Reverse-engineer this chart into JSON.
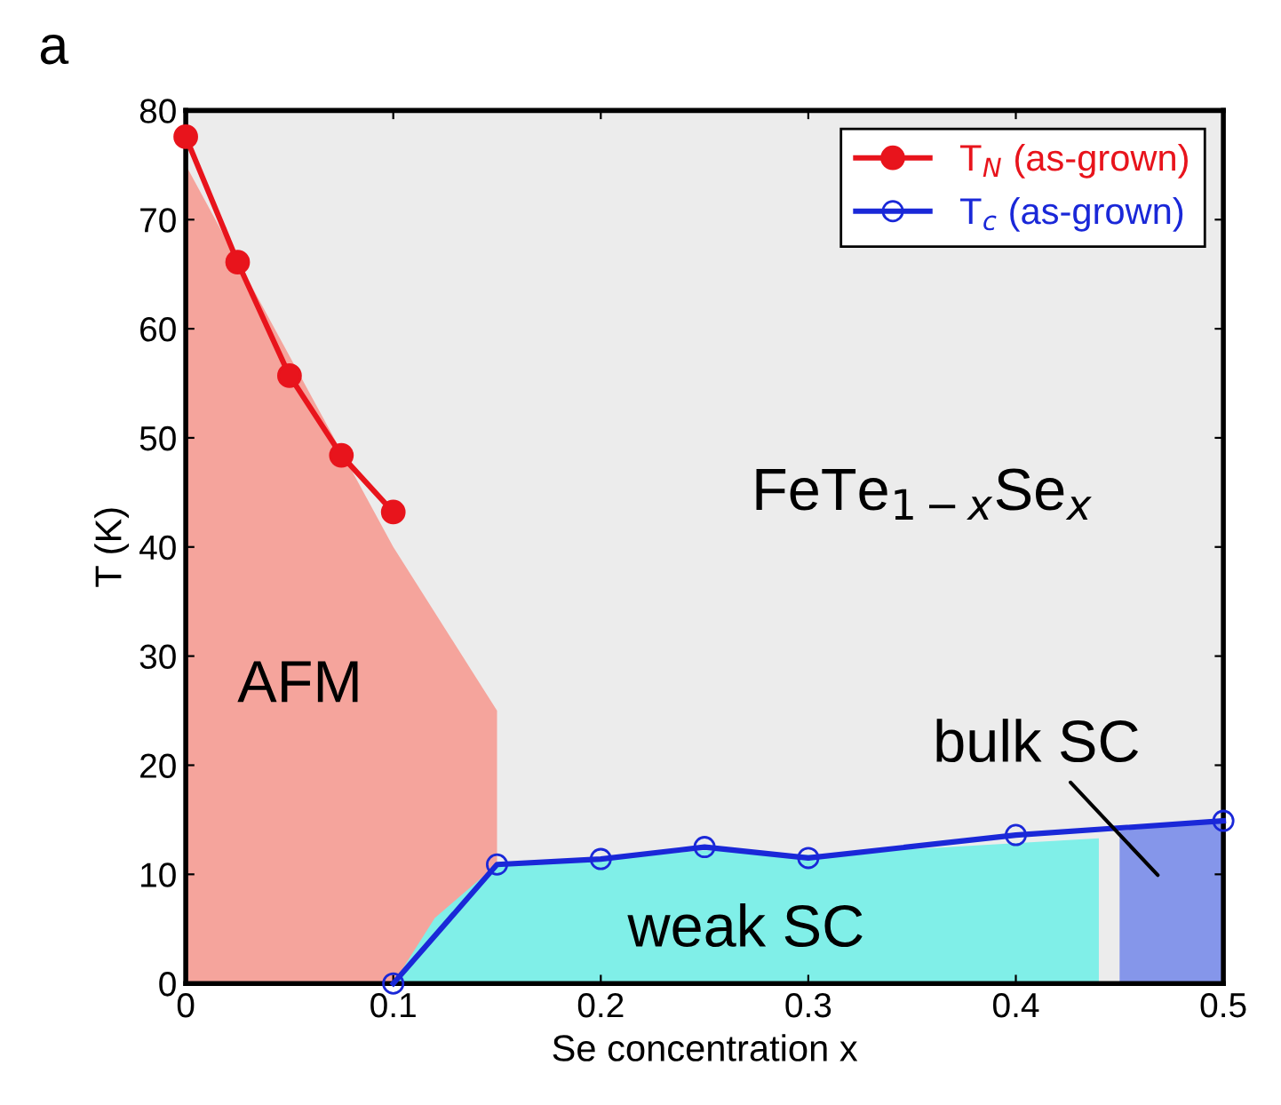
{
  "chart_data": {
    "type": "line",
    "xlabel": "Se concentration x",
    "ylabel": "T (K)",
    "xlim": [
      0,
      0.5
    ],
    "ylim": [
      0,
      80
    ],
    "xticks": [
      0,
      0.1,
      0.2,
      0.3,
      0.4,
      0.5
    ],
    "yticks": [
      0,
      10,
      20,
      30,
      40,
      50,
      60,
      70,
      80
    ],
    "grid": false,
    "legend": "top right",
    "series": [
      {
        "type": "area",
        "color": "#f5a49c",
        "x": [
          0,
          0.1,
          0.15
        ],
        "values": [
          75,
          40,
          25
        ]
      },
      {
        "type": "area",
        "color": "#80efe8",
        "x": [
          0.1,
          0.12,
          0.15,
          0.2,
          0.25,
          0.3,
          0.35,
          0.44
        ],
        "values": [
          0,
          6,
          10.9,
          11.4,
          12.2,
          11.8,
          12.3,
          13.3
        ]
      },
      {
        "type": "area",
        "color": "#8596ea",
        "x": [
          0.45,
          0.5
        ],
        "values": [
          14,
          14.9
        ]
      },
      {
        "name": "T$_{N}$ (as-grown)",
        "color": "#e8141c",
        "marker": "circle",
        "x": [
          0,
          0.025,
          0.05,
          0.075,
          0.1
        ],
        "values": [
          77.6,
          66.1,
          55.7,
          48.4,
          43.2
        ]
      },
      {
        "name": "T$_{c}$ (as-grown)",
        "color": "#1a28d8",
        "marker": "circle",
        "x": [
          0.1,
          0.15,
          0.2,
          0.25,
          0.3,
          0.4,
          0.5
        ],
        "values": [
          0,
          10.9,
          11.4,
          12.5,
          11.5,
          13.6,
          14.9
        ]
      }
    ],
    "annotations": [
      "a",
      "AFM",
      "weak SC",
      "bulk SC",
      "FeTe$_{1−x}$Se$_{x}$"
    ]
  }
}
